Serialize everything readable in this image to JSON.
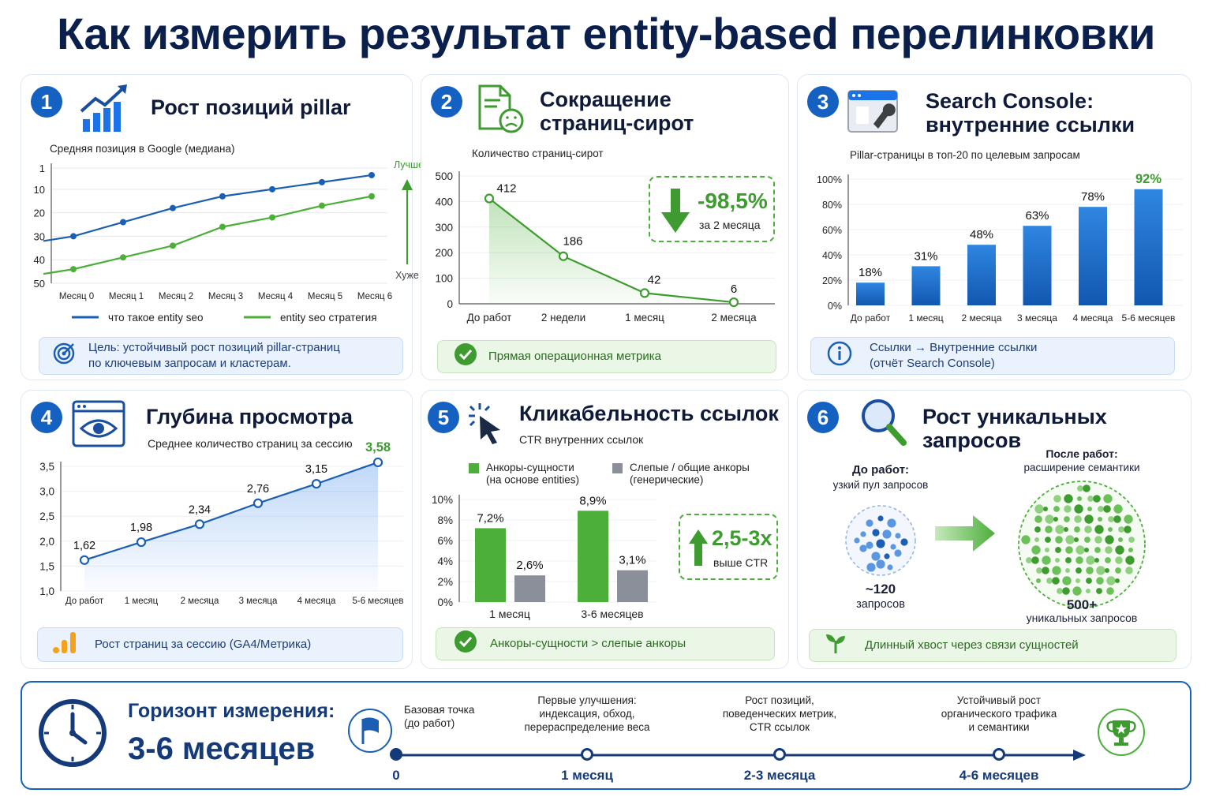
{
  "title": "Как измерить результат entity-based перелинковки",
  "colors": {
    "blue": "#1a5fb4",
    "green": "#4caf3a",
    "navy": "#0b1f4d",
    "gray": "#8a8f99"
  },
  "cards": [
    {
      "num": "1",
      "title": "Рост позиций pillar",
      "icon": "rising-chart-icon",
      "note": "Цель: устойчивый рост позиций pillar-страниц\nпо ключевым запросам и кластерам.",
      "note_icon": "target-icon"
    },
    {
      "num": "2",
      "title": "Сокращение\nстраниц-сирот",
      "icon": "sad-document-icon",
      "note": "Прямая операционная метрика",
      "note_icon": "check-circle-icon",
      "badge_value": "-98,5%",
      "badge_caption": "за 2 месяца"
    },
    {
      "num": "3",
      "title": "Search Console:\nвнутренние ссылки",
      "icon": "search-console-icon",
      "note": "Ссылки → Внутренние ссылки\n(отчёт Search Console)",
      "note_icon": "info-icon"
    },
    {
      "num": "4",
      "title": "Глубина просмотра",
      "icon": "browser-eye-icon",
      "note": "Рост страниц за сессию (GA4/Метрика)",
      "note_icon": "analytics-bars-icon"
    },
    {
      "num": "5",
      "title": "Кликабельность ссылок",
      "icon": "cursor-click-icon",
      "note": "Анкоры-сущности > слепые анкоры",
      "note_icon": "check-circle-icon",
      "badge_value": "2,5-3x",
      "badge_caption": "выше CTR"
    },
    {
      "num": "6",
      "title": "Рост уникальных запросов",
      "icon": "magnifier-icon",
      "note": "Длинный хвост через связи сущностей",
      "note_icon": "sprout-icon"
    }
  ],
  "chart_data": [
    {
      "type": "line",
      "title": "Средняя позиция в Google (медиана)",
      "categories": [
        "Месяц 0",
        "Месяц 1",
        "Месяц 2",
        "Месяц 3",
        "Месяц 4",
        "Месяц 5",
        "Месяц 6"
      ],
      "yticks": [
        "1",
        "10",
        "20",
        "30",
        "40",
        "50"
      ],
      "ylim": [
        50,
        1
      ],
      "series": [
        {
          "name": "что такое entity seo",
          "color": "#1a5fb4",
          "values": [
            30,
            24,
            18,
            13,
            10,
            7,
            4
          ]
        },
        {
          "name": "entity seo стратегия",
          "color": "#4caf3a",
          "values": [
            44,
            39,
            34,
            26,
            22,
            17,
            13
          ]
        }
      ],
      "annotations": {
        "better": "Лучше",
        "worse": "Хуже"
      },
      "legend": "bottom"
    },
    {
      "type": "area",
      "title": "Количество страниц-сирот",
      "categories": [
        "До работ",
        "2 недели",
        "1 месяц",
        "2 месяца"
      ],
      "values": [
        412,
        186,
        42,
        6
      ],
      "labels": [
        "412",
        "186",
        "42",
        "6"
      ],
      "yticks": [
        "0",
        "100",
        "200",
        "300",
        "400",
        "500"
      ],
      "ylim": [
        0,
        500
      ]
    },
    {
      "type": "bar",
      "title": "Pillar-страницы в топ-20 по целевым запросам",
      "categories": [
        "До работ",
        "1 месяц",
        "2 месяца",
        "3 месяца",
        "4 месяца",
        "5-6 месяцев"
      ],
      "values": [
        18,
        31,
        48,
        63,
        78,
        92
      ],
      "labels": [
        "18%",
        "31%",
        "48%",
        "63%",
        "78%",
        "92%"
      ],
      "yticks": [
        "0%",
        "20%",
        "40%",
        "60%",
        "80%",
        "100%"
      ],
      "ylim": [
        0,
        100
      ]
    },
    {
      "type": "area",
      "title": "Среднее количество страниц за сессию",
      "categories": [
        "До работ",
        "1 месяц",
        "2 месяца",
        "3 месяца",
        "4 месяца",
        "5-6 месяцев"
      ],
      "values": [
        1.62,
        1.98,
        2.34,
        2.76,
        3.15,
        3.58
      ],
      "labels": [
        "1,62",
        "1,98",
        "2,34",
        "2,76",
        "3,15",
        "3,58"
      ],
      "yticks": [
        "1,0",
        "1,5",
        "2,0",
        "2,5",
        "3,0",
        "3,5"
      ],
      "ylim": [
        1.0,
        3.6
      ]
    },
    {
      "type": "bar",
      "title": "CTR внутренних ссылок",
      "categories": [
        "1 месяц",
        "3-6 месяцев"
      ],
      "series": [
        {
          "name": "Анкоры-сущности\n(на основе entities)",
          "color": "#4caf3a",
          "values": [
            7.2,
            8.9
          ],
          "labels": [
            "7,2%",
            "8,9%"
          ]
        },
        {
          "name": "Слепые / общие анкоры\n(генерические)",
          "color": "#8a8f99",
          "values": [
            2.6,
            3.1
          ],
          "labels": [
            "2,6%",
            "3,1%"
          ]
        }
      ],
      "yticks": [
        "0%",
        "2%",
        "4%",
        "6%",
        "8%",
        "10%"
      ],
      "ylim": [
        0,
        10
      ],
      "legend": "top"
    }
  ],
  "queries": {
    "before_title": "До работ:",
    "before_sub": "узкий пул запросов",
    "before_value": "~120",
    "before_unit": "запросов",
    "after_title": "После работ:",
    "after_sub": "расширение семантики",
    "after_value": "500+",
    "after_unit": "уникальных запросов"
  },
  "horizon": {
    "title": "Горизонт измерения:",
    "value": "3-6 месяцев",
    "steps": [
      {
        "label": "Базовая точка\n(до работ)",
        "time": "0"
      },
      {
        "label": "Первые улучшения:\nиндексация, обход,\nперераспределение веса",
        "time": "1 месяц"
      },
      {
        "label": "Рост позиций,\nповеденческих метрик,\nCTR ссылок",
        "time": "2-3 месяца"
      },
      {
        "label": "Устойчивый рост\nорганического трафика\nи семантики",
        "time": "4-6 месяцев"
      }
    ]
  }
}
